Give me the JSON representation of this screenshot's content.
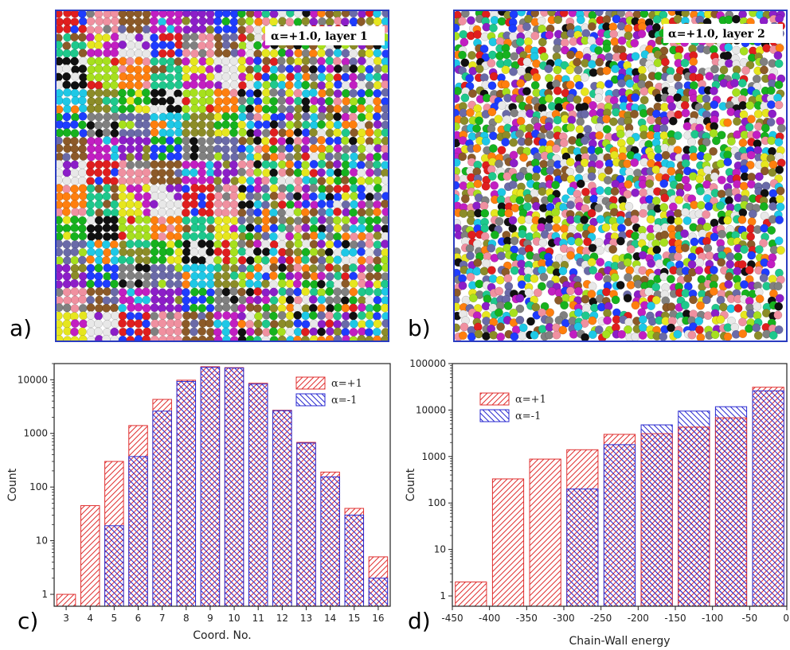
{
  "panels": {
    "a": {
      "letter": "a)",
      "annotation": "α=+1.0, layer 1"
    },
    "b": {
      "letter": "b)",
      "annotation": "α=+1.0, layer 2"
    },
    "c": {
      "letter": "c)"
    },
    "d": {
      "letter": "d)"
    }
  },
  "colors": {
    "alpha_plus": "#e03030",
    "alpha_minus": "#2a2ad0",
    "panel_border": "#2a3cc0",
    "bead_palette": [
      "#e01e1e",
      "#1e3cff",
      "#16b21e",
      "#e6e61e",
      "#c21ec2",
      "#1ec8e6",
      "#ff7f0e",
      "#f090a0",
      "#808080",
      "#101010",
      "#e8e8e8",
      "#8c1ec8",
      "#8c8c28",
      "#1ec88c",
      "#8c5a28",
      "#6a6aa8",
      "#a6e01e"
    ]
  },
  "chart_data": [
    {
      "type": "bar",
      "panel": "c",
      "categories": [
        "3",
        "4",
        "5",
        "6",
        "7",
        "8",
        "9",
        "10",
        "11",
        "12",
        "13",
        "14",
        "15",
        "16"
      ],
      "series": [
        {
          "name": "α=+1",
          "values": [
            1,
            45,
            300,
            1400,
            4300,
            9800,
            17500,
            16800,
            8600,
            2700,
            680,
            190,
            40,
            5
          ]
        },
        {
          "name": "α=-1",
          "values": [
            null,
            null,
            19,
            370,
            2600,
            9300,
            17000,
            16500,
            8300,
            2650,
            660,
            155,
            30,
            2
          ]
        }
      ],
      "xlabel": "Coord. No.",
      "ylabel": "Count",
      "yscale": "log",
      "ylim": [
        0.6,
        20000
      ],
      "yticks": [
        1,
        10,
        100,
        1000,
        10000
      ],
      "ytick_labels": [
        "1",
        "10",
        "100",
        "1000",
        "10000"
      ],
      "grid": false,
      "legend_position": "top-right"
    },
    {
      "type": "bar",
      "panel": "d",
      "bin_edges": [
        -450,
        -400,
        -350,
        -300,
        -250,
        -200,
        -150,
        -100,
        -50,
        0
      ],
      "series": [
        {
          "name": "α=+1",
          "values": [
            2,
            330,
            880,
            1400,
            3000,
            3100,
            4300,
            6800,
            31000
          ]
        },
        {
          "name": "α=-1",
          "values": [
            null,
            null,
            null,
            200,
            1800,
            4800,
            9500,
            11800,
            26000
          ]
        }
      ],
      "xlabel": "Chain-Wall energy",
      "ylabel": "Count",
      "yscale": "log",
      "ylim": [
        0.6,
        100000
      ],
      "xticks": [
        -450,
        -400,
        -350,
        -300,
        -250,
        -200,
        -150,
        -100,
        -50,
        0
      ],
      "xtick_labels": [
        "-450",
        "-400",
        "-350",
        "-300",
        "-250",
        "-200",
        "-150",
        "-100",
        "-50",
        "0"
      ],
      "yticks": [
        1,
        10,
        100,
        1000,
        10000,
        100000
      ],
      "ytick_labels": [
        "1",
        "10",
        "100",
        "1000",
        "10000",
        "100000"
      ],
      "grid": false,
      "legend_position": "top-left"
    }
  ]
}
